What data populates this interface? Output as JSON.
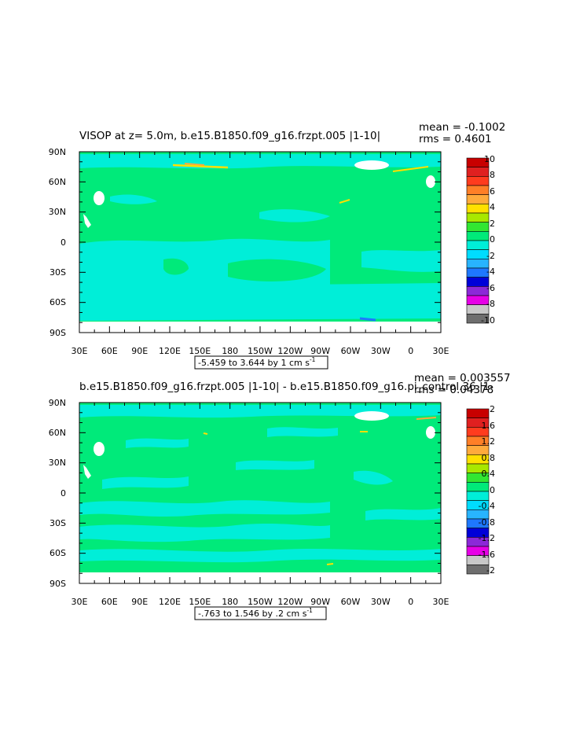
{
  "chart_data": [
    {
      "type": "heatmap",
      "title": "VISOP at z=    5.0m, b.e15.B1850.f09_g16.frzpt.005 |1-10|",
      "stats": {
        "mean": "mean = -0.1002",
        "rms": "rms = 0.4601"
      },
      "contour_info": "-5.459 to 3.644 by 1 cm s",
      "contour_info_exp": "-1",
      "x_ticks": [
        "30E",
        "60E",
        "90E",
        "120E",
        "150E",
        "180",
        "150W",
        "120W",
        "90W",
        "60W",
        "30W",
        "0",
        "30E"
      ],
      "y_ticks": [
        "90N",
        "60N",
        "30N",
        "0",
        "30S",
        "60S",
        "90S"
      ],
      "colorbar": {
        "levels": [
          "10",
          "8",
          "6",
          "4",
          "2",
          "0",
          "-2",
          "-4",
          "-6",
          "-8",
          "-10"
        ],
        "colors": [
          "#c80000",
          "#e02020",
          "#ff3c1e",
          "#ff7f27",
          "#ffaa3c",
          "#ffe000",
          "#a8e800",
          "#32e632",
          "#00ea7a",
          "#00eed8",
          "#00dcff",
          "#28b4ff",
          "#1e78ff",
          "#0000d8",
          "#8c28d8",
          "#e600e6",
          "#c8c8c8",
          "#6e6e6e"
        ]
      },
      "field": {
        "dominant": "#00ea7a",
        "secondary": "#00eed8",
        "accent": [
          "#ffe000",
          "#ffaa3c",
          "#1e78ff"
        ]
      },
      "xlim": [
        30,
        390
      ],
      "ylim": [
        -90,
        90
      ]
    },
    {
      "type": "heatmap",
      "title": "b.e15.B1850.f09_g16.frzpt.005 |1-10| - b.e15.B1850.f09_g16.pi_control.36 |1-",
      "stats": {
        "mean": "mean = 0.003557",
        "rms": "rms = 0.04378"
      },
      "contour_info": "-.763 to 1.546 by .2 cm s",
      "contour_info_exp": "-1",
      "x_ticks": [
        "30E",
        "60E",
        "90E",
        "120E",
        "150E",
        "180",
        "150W",
        "120W",
        "90W",
        "60W",
        "30W",
        "0",
        "30E"
      ],
      "y_ticks": [
        "90N",
        "60N",
        "30N",
        "0",
        "30S",
        "60S",
        "90S"
      ],
      "colorbar": {
        "levels": [
          "2",
          "1.6",
          "1.2",
          "0.8",
          "0.4",
          "0",
          "-0.4",
          "-0.8",
          "-1.2",
          "-1.6",
          "-2"
        ],
        "colors": [
          "#c80000",
          "#e02020",
          "#ff3c1e",
          "#ff7f27",
          "#ffaa3c",
          "#ffe000",
          "#a8e800",
          "#32e632",
          "#00ea7a",
          "#00eed8",
          "#00dcff",
          "#28b4ff",
          "#1e78ff",
          "#0000d8",
          "#8c28d8",
          "#e600e6",
          "#c8c8c8",
          "#6e6e6e"
        ]
      },
      "field": {
        "dominant": "#00ea7a",
        "secondary": "#00eed8",
        "accent": [
          "#ffe000",
          "#ffaa3c"
        ]
      },
      "xlim": [
        30,
        390
      ],
      "ylim": [
        -90,
        90
      ]
    }
  ]
}
